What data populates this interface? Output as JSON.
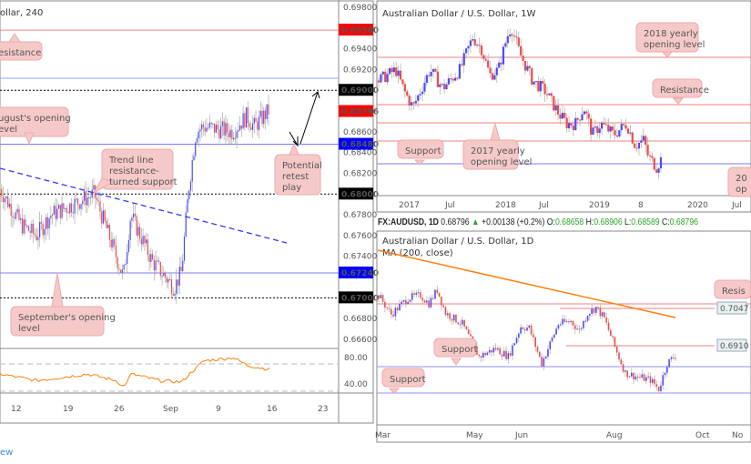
{
  "left_panel": {
    "title": "ollar, 240",
    "price_ticks": [
      "0.69800",
      "0.69400",
      "0.69200",
      "0.68600",
      "0.68400",
      "0.68200",
      "0.67800",
      "0.67600",
      "0.67400",
      "0.66800",
      "0.66600"
    ],
    "price_labels": [
      {
        "text": "0.69580",
        "color": "#ff0000",
        "price": 0.6958
      },
      {
        "text": "0.69000",
        "color": "#000000",
        "price": 0.69
      },
      {
        "text": "0.68796",
        "color": "#ff0000",
        "price": 0.68796
      },
      {
        "text": "0.68480",
        "color": "#0000ff",
        "price": 0.6848
      },
      {
        "text": "0.68000",
        "color": "#000000",
        "price": 0.68
      },
      {
        "text": "0.67240",
        "color": "#0000ff",
        "price": 0.6724
      },
      {
        "text": "0.67000",
        "color": "#000000",
        "price": 0.67
      }
    ],
    "annotations": {
      "resistance": "esistance",
      "august": [
        "ugust's opening",
        "evel"
      ],
      "trend": [
        "Trend line",
        "resistance-",
        "turned support"
      ],
      "retest": [
        "Potential",
        "retest",
        "play"
      ],
      "september": [
        "September's opening",
        "level"
      ]
    },
    "date_ticks": [
      "12",
      "19",
      "26",
      "Sep",
      "9",
      "16",
      "23"
    ],
    "rsi_ticks": [
      "80.00",
      "40.00"
    ]
  },
  "weekly_panel": {
    "title": "Australian Dollar / U.S. Dollar, 1W",
    "annotations": {
      "yearly2018": [
        "2018 yearly",
        "opening level"
      ],
      "resistance": "Resistance",
      "support": "Support",
      "yearly2017": [
        "2017 yearly",
        "opening level"
      ],
      "cut": [
        "20",
        "op"
      ]
    },
    "date_ticks": [
      "2017",
      "Jul",
      "2018",
      "Jul",
      "2019",
      "8",
      "2020",
      "Jul"
    ]
  },
  "info_bar": {
    "symbol": "FX:AUDUSD, 1D",
    "last": "0.68796",
    "change": "+0.00138 (+0.2%)",
    "o_label": "O:",
    "o": "0.68658",
    "h_label": "H:",
    "h": "0.68906",
    "l_label": "L:",
    "l": "0.68589",
    "c_label": "C:",
    "c": "0.68796"
  },
  "daily_panel": {
    "title": "Australian Dollar / U.S. Dollar, 1D",
    "indicator": "MA (200, close)",
    "price_labels": [
      "0.7047",
      "0.6910"
    ],
    "annotations": {
      "support1": "Support",
      "support2": "Support",
      "resistance": "Resis"
    },
    "date_ticks": [
      "Mar",
      "May",
      "Jun",
      "Aug",
      "Oct",
      "No"
    ]
  },
  "watermark": "ew",
  "colors": {
    "up": "#4a4aff",
    "down": "#ef4a4a",
    "wick": "#aaaaaa",
    "rsi": "#ff7f0e",
    "ma": "#ff7f0e",
    "resistance": "#f08080",
    "support": "#7b7bff",
    "note_bg": "#f6c9c9"
  },
  "chart_data": [
    {
      "type": "candlestick",
      "title": "ollar, 240",
      "x_unit": "days from Aug 9",
      "ylim": [
        0.666,
        0.698
      ],
      "anchors": [
        [
          0,
          0.6805
        ],
        [
          3,
          0.677
        ],
        [
          5,
          0.676
        ],
        [
          7,
          0.678
        ],
        [
          13,
          0.68
        ],
        [
          17,
          0.672
        ],
        [
          18,
          0.678
        ],
        [
          21,
          0.6735
        ],
        [
          24,
          0.671
        ],
        [
          25,
          0.6725
        ],
        [
          26,
          0.6805
        ],
        [
          27,
          0.686
        ],
        [
          28,
          0.6865
        ],
        [
          32,
          0.686
        ],
        [
          34,
          0.6875
        ],
        [
          35,
          0.6865
        ],
        [
          37,
          0.688
        ]
      ],
      "rsi": {
        "ylim": [
          20,
          100
        ],
        "levels": [
          70,
          30
        ],
        "anchors": [
          [
            0,
            55
          ],
          [
            5,
            45
          ],
          [
            12,
            55
          ],
          [
            16,
            45
          ],
          [
            17,
            35
          ],
          [
            18,
            55
          ],
          [
            22,
            45
          ],
          [
            25,
            43
          ],
          [
            26,
            55
          ],
          [
            28,
            75
          ],
          [
            32,
            80
          ],
          [
            34,
            68
          ],
          [
            37,
            62
          ]
        ]
      }
    },
    {
      "type": "candlestick",
      "title": "Australian Dollar / U.S. Dollar, 1W",
      "x_unit": "weeks",
      "anchors": [
        [
          0,
          0.76
        ],
        [
          8,
          0.77
        ],
        [
          12,
          0.75
        ],
        [
          16,
          0.735
        ],
        [
          24,
          0.77
        ],
        [
          30,
          0.753
        ],
        [
          38,
          0.77
        ],
        [
          44,
          0.8
        ],
        [
          48,
          0.79
        ],
        [
          52,
          0.765
        ],
        [
          56,
          0.77
        ],
        [
          60,
          0.8
        ],
        [
          62,
          0.81
        ],
        [
          66,
          0.785
        ],
        [
          72,
          0.76
        ],
        [
          78,
          0.75
        ],
        [
          84,
          0.73
        ],
        [
          88,
          0.72
        ],
        [
          92,
          0.72
        ],
        [
          96,
          0.735
        ],
        [
          100,
          0.71
        ],
        [
          104,
          0.72
        ],
        [
          110,
          0.71
        ],
        [
          116,
          0.72
        ],
        [
          120,
          0.7
        ],
        [
          124,
          0.705
        ],
        [
          126,
          0.69
        ],
        [
          130,
          0.68
        ],
        [
          132,
          0.687
        ]
      ]
    },
    {
      "type": "candlestick",
      "title": "Australian Dollar / U.S. Dollar, 1D",
      "x_unit": "trading days",
      "ma_range": [
        0.7261,
        0.7013
      ],
      "anchors": [
        [
          0,
          0.7095
        ],
        [
          6,
          0.7025
        ],
        [
          14,
          0.7085
        ],
        [
          20,
          0.7095
        ],
        [
          24,
          0.7065
        ],
        [
          28,
          0.7115
        ],
        [
          32,
          0.703
        ],
        [
          40,
          0.699
        ],
        [
          48,
          0.687
        ],
        [
          56,
          0.69
        ],
        [
          62,
          0.687
        ],
        [
          68,
          0.698
        ],
        [
          72,
          0.6975
        ],
        [
          78,
          0.6845
        ],
        [
          86,
          0.699
        ],
        [
          92,
          0.7
        ],
        [
          96,
          0.6965
        ],
        [
          100,
          0.703
        ],
        [
          104,
          0.705
        ],
        [
          108,
          0.701
        ],
        [
          114,
          0.6885
        ],
        [
          118,
          0.681
        ],
        [
          124,
          0.6795
        ],
        [
          130,
          0.6785
        ],
        [
          134,
          0.675
        ],
        [
          138,
          0.6845
        ],
        [
          142,
          0.6875
        ]
      ]
    }
  ]
}
